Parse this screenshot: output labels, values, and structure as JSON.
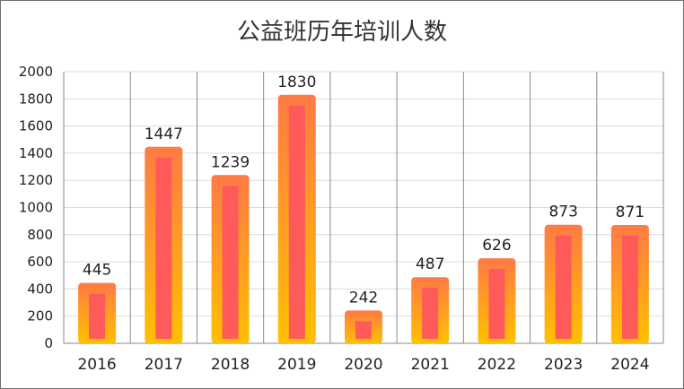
{
  "chart_data": {
    "type": "bar",
    "title": "公益班历年培训人数",
    "categories": [
      "2016",
      "2017",
      "2018",
      "2019",
      "2020",
      "2021",
      "2022",
      "2023",
      "2024"
    ],
    "values": [
      445,
      1447,
      1239,
      1830,
      242,
      487,
      626,
      873,
      871
    ],
    "xlabel": "",
    "ylabel": "",
    "ylim": [
      0,
      2000
    ],
    "yticks": [
      0,
      200,
      400,
      600,
      800,
      1000,
      1200,
      1400,
      1600,
      1800,
      2000
    ],
    "grid": true,
    "legend": "none",
    "colors": {
      "bar_outer_top": "#ff7a45",
      "bar_outer_bottom": "#ffc000",
      "bar_inner": "#ff5a5a"
    }
  }
}
